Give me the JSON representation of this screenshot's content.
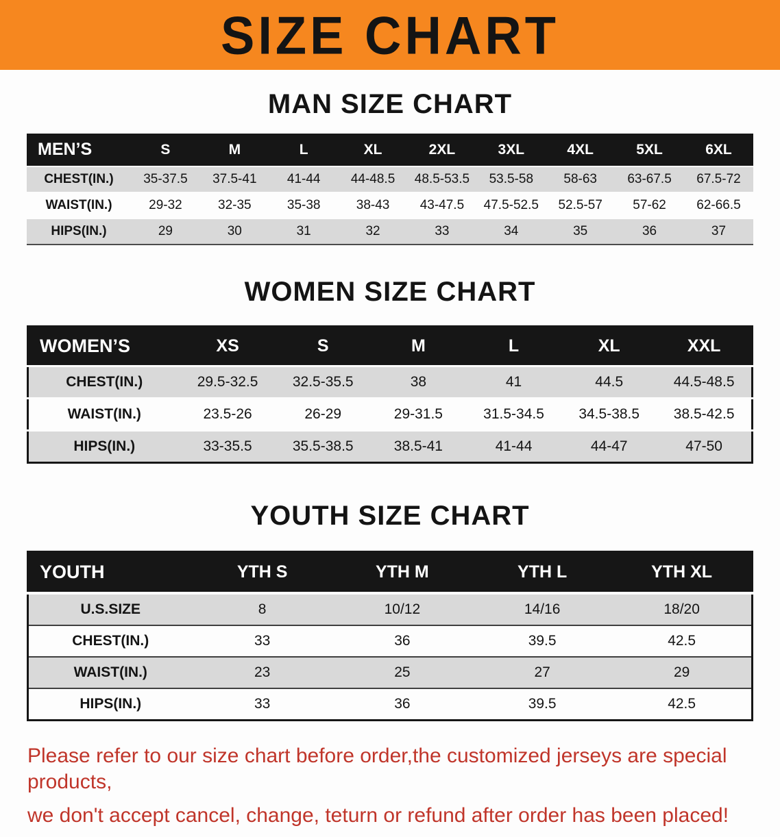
{
  "banner": {
    "title": "SIZE CHART"
  },
  "sections": [
    {
      "heading": "MAN SIZE CHART",
      "table": {
        "header": [
          "MEN’S",
          "S",
          "M",
          "L",
          "XL",
          "2XL",
          "3XL",
          "4XL",
          "5XL",
          "6XL"
        ],
        "rows": [
          {
            "label": "CHEST(IN.)",
            "values": [
              "35-37.5",
              "37.5-41",
              "41-44",
              "44-48.5",
              "48.5-53.5",
              "53.5-58",
              "58-63",
              "63-67.5",
              "67.5-72"
            ]
          },
          {
            "label": "WAIST(IN.)",
            "values": [
              "29-32",
              "32-35",
              "35-38",
              "38-43",
              "43-47.5",
              "47.5-52.5",
              "52.5-57",
              "57-62",
              "62-66.5"
            ]
          },
          {
            "label": "HIPS(IN.)",
            "values": [
              "29",
              "30",
              "31",
              "32",
              "33",
              "34",
              "35",
              "36",
              "37"
            ]
          }
        ]
      }
    },
    {
      "heading": "WOMEN SIZE CHART",
      "table": {
        "header": [
          "WOMEN’S",
          "XS",
          "S",
          "M",
          "L",
          "XL",
          "XXL"
        ],
        "rows": [
          {
            "label": "CHEST(IN.)",
            "values": [
              "29.5-32.5",
              "32.5-35.5",
              "38",
              "41",
              "44.5",
              "44.5-48.5"
            ]
          },
          {
            "label": "WAIST(IN.)",
            "values": [
              "23.5-26",
              "26-29",
              "29-31.5",
              "31.5-34.5",
              "34.5-38.5",
              "38.5-42.5"
            ]
          },
          {
            "label": "HIPS(IN.)",
            "values": [
              "33-35.5",
              "35.5-38.5",
              "38.5-41",
              "41-44",
              "44-47",
              "47-50"
            ]
          }
        ]
      }
    },
    {
      "heading": "YOUTH SIZE CHART",
      "table": {
        "header": [
          "YOUTH",
          "YTH S",
          "YTH M",
          "YTH L",
          "YTH XL"
        ],
        "rows": [
          {
            "label": "U.S.SIZE",
            "values": [
              "8",
              "10/12",
              "14/16",
              "18/20"
            ]
          },
          {
            "label": "CHEST(IN.)",
            "values": [
              "33",
              "36",
              "39.5",
              "42.5"
            ]
          },
          {
            "label": "WAIST(IN.)",
            "values": [
              "23",
              "25",
              "27",
              "29"
            ]
          },
          {
            "label": "HIPS(IN.)",
            "values": [
              "33",
              "36",
              "39.5",
              "42.5"
            ]
          }
        ]
      }
    }
  ],
  "footer": {
    "line1": "Please refer to our size chart before order,the customized jerseys are special products,",
    "line2": "we don't accept cancel, change, teturn or refund after order has been placed!"
  },
  "colors": {
    "banner_orange": "#f6871f",
    "table_header_black": "#161616",
    "row_stripe_gray": "#d9d9d9",
    "disclaimer_red": "#c0352a"
  }
}
